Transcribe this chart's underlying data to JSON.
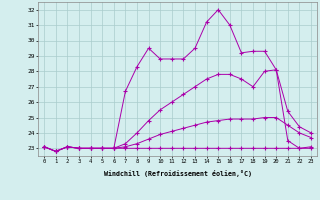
{
  "xlabel": "Windchill (Refroidissement éolien,°C)",
  "background_color": "#d4eeee",
  "grid_color": "#aacccc",
  "line_color": "#aa00aa",
  "hours": [
    0,
    1,
    2,
    3,
    4,
    5,
    6,
    7,
    8,
    9,
    10,
    11,
    12,
    13,
    14,
    15,
    16,
    17,
    18,
    19,
    20,
    21,
    22,
    23
  ],
  "line1": [
    23.1,
    22.8,
    23.1,
    23.0,
    23.0,
    23.0,
    23.0,
    23.0,
    23.0,
    23.0,
    23.0,
    23.0,
    23.0,
    23.0,
    23.0,
    23.0,
    23.0,
    23.0,
    23.0,
    23.0,
    23.0,
    23.0,
    23.0,
    23.0
  ],
  "line2": [
    23.1,
    22.8,
    23.1,
    23.0,
    23.0,
    23.0,
    23.0,
    23.1,
    23.3,
    23.6,
    23.9,
    24.1,
    24.3,
    24.5,
    24.7,
    24.8,
    24.9,
    24.9,
    24.9,
    25.0,
    25.0,
    24.5,
    24.0,
    23.7
  ],
  "line3": [
    23.1,
    22.8,
    23.1,
    23.0,
    23.0,
    23.0,
    23.0,
    23.3,
    24.0,
    24.8,
    25.5,
    26.0,
    26.5,
    27.0,
    27.5,
    27.8,
    27.8,
    27.5,
    27.0,
    28.0,
    28.1,
    25.4,
    24.4,
    24.0
  ],
  "line4": [
    23.1,
    22.8,
    23.1,
    23.0,
    23.0,
    23.0,
    23.0,
    26.7,
    28.3,
    29.5,
    28.8,
    28.8,
    28.8,
    29.5,
    31.2,
    32.0,
    31.0,
    29.2,
    29.3,
    29.3,
    28.1,
    23.5,
    23.0,
    23.1
  ],
  "ylim": [
    22.5,
    32.5
  ],
  "yticks": [
    23,
    24,
    25,
    26,
    27,
    28,
    29,
    30,
    31,
    32
  ],
  "xticks": [
    0,
    1,
    2,
    3,
    4,
    5,
    6,
    7,
    8,
    9,
    10,
    11,
    12,
    13,
    14,
    15,
    16,
    17,
    18,
    19,
    20,
    21,
    22,
    23
  ]
}
